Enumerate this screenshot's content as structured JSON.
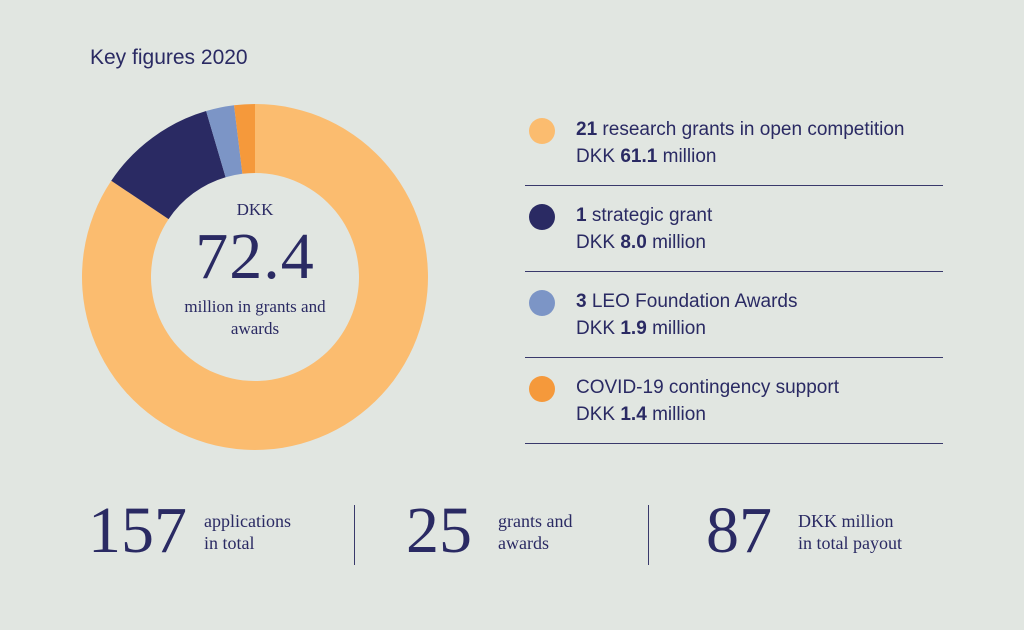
{
  "title": "Key figures 2020",
  "chart_data": {
    "type": "pie",
    "style": "donut",
    "total_label_top": "DKK",
    "total_value": "72.4",
    "total_label_bottom": "million in grants and awards",
    "slices": [
      {
        "label": "research grants in open competition",
        "count": "21",
        "value": 61.1,
        "value_text": "61.1",
        "color": "#fbbc6f"
      },
      {
        "label": "strategic grant",
        "count": "1",
        "value": 8.0,
        "value_text": "8.0",
        "color": "#2a2a63"
      },
      {
        "label": "LEO Foundation Awards",
        "count": "3",
        "value": 1.9,
        "value_text": "1.9",
        "color": "#7c95c6"
      },
      {
        "label": "COVID-19 contingency support",
        "count": "",
        "value": 1.4,
        "value_text": "1.4",
        "color": "#f5993b"
      }
    ]
  },
  "legend": {
    "currency": "DKK",
    "unit": "million"
  },
  "stats": [
    {
      "number": "157",
      "line1": "applications",
      "line2": "in total"
    },
    {
      "number": "25",
      "line1": "grants and",
      "line2": "awards"
    },
    {
      "number": "87",
      "line1": "DKK million",
      "line2": "in total payout"
    }
  ]
}
